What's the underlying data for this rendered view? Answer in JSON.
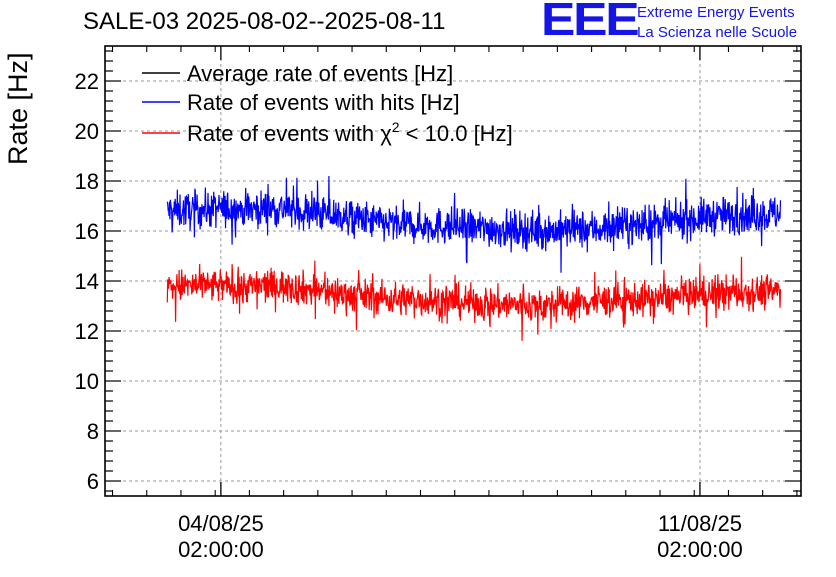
{
  "header": {
    "title": "SALE-03 2025-08-02--2025-08-11"
  },
  "logo": {
    "mark": "EEE",
    "line1": "Extreme Energy Events",
    "line2": "La Scienza nelle Scuole",
    "color": "#1515e6"
  },
  "chart_data": {
    "type": "line",
    "title": "SALE-03 2025-08-02--2025-08-11",
    "ylabel": "Rate [Hz]",
    "xlabel": "",
    "ylim": [
      5.4,
      23.4
    ],
    "yticks": [
      6,
      8,
      10,
      12,
      14,
      16,
      18,
      20,
      22
    ],
    "ytick_labels": [
      "6",
      "8",
      "10",
      "12",
      "14",
      "16",
      "18",
      "20",
      "22"
    ],
    "grid": true,
    "legend_position": "top-left",
    "x_unit": "days since 2025-08-02 00:00",
    "xlim": [
      0.39,
      10.56
    ],
    "xticks": [
      {
        "value": 2.0833,
        "date": "04/08/25",
        "time": "02:00:00"
      },
      {
        "value": 9.0833,
        "date": "11/08/25",
        "time": "02:00:00"
      }
    ],
    "data_range": [
      1.3,
      7.6,
      10.26
    ],
    "series": [
      {
        "name": "Average rate of events [Hz]",
        "label_main": "Average rate of events [Hz]",
        "color": "#000000",
        "x_knots": [],
        "mean_knots": [],
        "noise": 0
      },
      {
        "name": "Rate of events with hits [Hz]",
        "label_main": "Rate of events with hits [Hz]",
        "color": "#0000ff",
        "x_knots": [
          1.3,
          2.3,
          3.0,
          3.8,
          4.5,
          5.3,
          6.0,
          6.8,
          7.6,
          8.5,
          9.3,
          10.26
        ],
        "mean_knots": [
          16.8,
          16.9,
          16.9,
          16.6,
          16.3,
          16.2,
          16.1,
          16.0,
          16.1,
          16.3,
          16.6,
          16.7
        ],
        "noise": 0.55
      },
      {
        "name": "Rate of events with χ2 < 10.0 [Hz]",
        "label_main": "Rate of events with χ",
        "label_sup": "2",
        "label_tail": " < 10.0 [Hz]",
        "color": "#ff0000",
        "x_knots": [
          1.3,
          2.3,
          3.0,
          3.8,
          4.5,
          5.3,
          6.0,
          6.8,
          7.6,
          8.5,
          9.3,
          10.26
        ],
        "mean_knots": [
          13.8,
          13.8,
          13.8,
          13.5,
          13.3,
          13.2,
          13.1,
          13.0,
          13.2,
          13.3,
          13.5,
          13.6
        ],
        "noise": 0.5
      }
    ]
  }
}
